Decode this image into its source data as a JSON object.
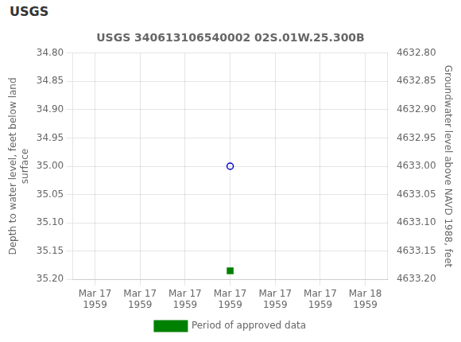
{
  "chart_data": {
    "type": "scatter",
    "annotations": [
      "USGS"
    ],
    "title": "USGS 340613106540002 02S.01W.25.300B",
    "ylabel": "Depth to water level, feet below land\nsurface",
    "y2label": "Groundwater level above NAVD 1988, feet",
    "categories": [
      "Mar 17\n1959",
      "Mar 17\n1959",
      "Mar 17\n1959",
      "Mar 17\n1959",
      "Mar 17\n1959",
      "Mar 17\n1959",
      "Mar 18\n1959"
    ],
    "series": [
      {
        "color": "#0000cd",
        "marker": "circle",
        "values": [
          null,
          null,
          null,
          35.0,
          null,
          null,
          null
        ]
      },
      {
        "name": "Period of approved data",
        "color": "#008000",
        "marker": "square",
        "values": [
          null,
          null,
          null,
          35.185,
          null,
          null,
          null
        ]
      }
    ],
    "ylim": [
      35.2,
      34.8
    ],
    "yticks": [
      {
        "value": 34.8,
        "label": "34.80"
      },
      34.85,
      {
        "value": 34.9,
        "label": "34.90"
      },
      34.95,
      {
        "value": 35.0,
        "label": "35.00"
      },
      35.05,
      {
        "value": 35.1,
        "label": "35.10"
      },
      35.15,
      {
        "value": 35.2,
        "label": "35.20"
      }
    ],
    "y2lim": [
      4633.2,
      4632.8
    ],
    "y2ticks": [
      {
        "value": 4632.8,
        "label": "4632.80"
      },
      4632.85,
      {
        "value": 4632.9,
        "label": "4632.90"
      },
      4632.95,
      {
        "value": 4633.0,
        "label": "4633.00"
      },
      4633.05,
      {
        "value": 4633.1,
        "label": "4633.10"
      },
      4633.15,
      {
        "value": 4633.2,
        "label": "4633.20"
      }
    ],
    "grid": true,
    "legend": "bottom"
  }
}
